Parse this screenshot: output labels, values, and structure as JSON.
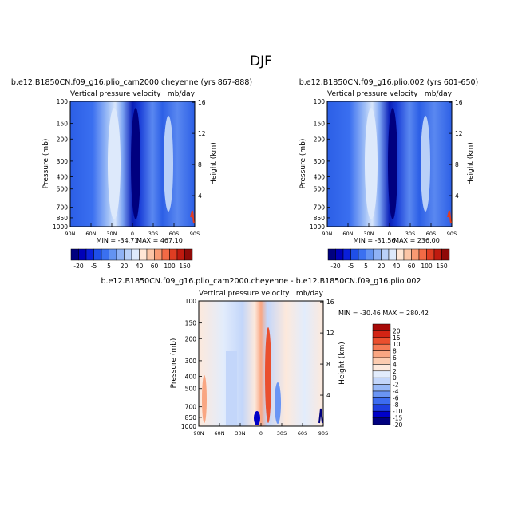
{
  "page": {
    "title": "DJF"
  },
  "colors": {
    "full_scale": [
      "#00007f",
      "#0000b8",
      "#0a1fd9",
      "#1f4fe8",
      "#3a70f0",
      "#6393f2",
      "#8fb2f5",
      "#b9d0f8",
      "#dde9fb",
      "#ffe6d5",
      "#fcc5a6",
      "#f99a72",
      "#f26a45",
      "#e03d22",
      "#c01a0f",
      "#8f0a08"
    ],
    "diff_scale": [
      "#00007f",
      "#0000c8",
      "#1e3fe0",
      "#3c6cf0",
      "#6a95f4",
      "#97b8f7",
      "#c3d6fa",
      "#e2ecfc",
      "#fde9dc",
      "#fcccb0",
      "#f9a682",
      "#f57a55",
      "#ea4f2e",
      "#d22414",
      "#a80a08"
    ]
  },
  "chart_data": [
    {
      "type": "heatmap",
      "title": "b.e12.B1850CN.f09_g16.plio_cam2000.cheyenne (yrs 867-888)",
      "subtitle": "Vertical pressure velocity",
      "units": "mb/day",
      "ylabel": "Pressure (mb)",
      "ylabel_right": "Height (km)",
      "xticks": [
        "90N",
        "60N",
        "30N",
        "0",
        "30S",
        "60S",
        "90S"
      ],
      "yticks": [
        "100",
        "150",
        "200",
        "300",
        "400",
        "500",
        "700",
        "850",
        "1000"
      ],
      "yticks_right": [
        "16",
        "12",
        "8",
        "4"
      ],
      "ylim": [
        1000,
        100
      ],
      "min_label": "MIN = -34.71",
      "max_label": "MAX = 467.10",
      "colorbar_ticks": [
        "-20",
        "-5",
        "5",
        "20",
        "40",
        "60",
        "100",
        "150"
      ],
      "colorbar_position": "bottom"
    },
    {
      "type": "heatmap",
      "title": "b.e12.B1850CN.f09_g16.plio.002 (yrs 601-650)",
      "subtitle": "Vertical pressure velocity",
      "units": "mb/day",
      "ylabel": "Pressure (mb)",
      "ylabel_right": "Height (km)",
      "xticks": [
        "90N",
        "60N",
        "30N",
        "0",
        "30S",
        "60S",
        "90S"
      ],
      "yticks": [
        "100",
        "150",
        "200",
        "300",
        "400",
        "500",
        "700",
        "850",
        "1000"
      ],
      "yticks_right": [
        "16",
        "12",
        "8",
        "4"
      ],
      "ylim": [
        1000,
        100
      ],
      "min_label": "MIN = -31.56",
      "max_label": "MAX = 236.00",
      "colorbar_ticks": [
        "-20",
        "-5",
        "5",
        "20",
        "40",
        "60",
        "100",
        "150"
      ],
      "colorbar_position": "bottom"
    },
    {
      "type": "heatmap",
      "title": "b.e12.B1850CN.f09_g16.plio_cam2000.cheyenne - b.e12.B1850CN.f09_g16.plio.002",
      "subtitle": "Vertical pressure velocity",
      "units": "mb/day",
      "ylabel": "Pressure (mb)",
      "ylabel_right": "Height (km)",
      "xticks": [
        "90N",
        "60N",
        "30N",
        "0",
        "30S",
        "60S",
        "90S"
      ],
      "yticks": [
        "100",
        "150",
        "200",
        "300",
        "400",
        "500",
        "700",
        "850",
        "1000"
      ],
      "yticks_right": [
        "16",
        "12",
        "8",
        "4"
      ],
      "ylim": [
        1000,
        100
      ],
      "minmax_label": "MIN = -30.46   MAX = 280.42",
      "colorbar_ticks": [
        "20",
        "15",
        "10",
        "8",
        "6",
        "4",
        "2",
        "0",
        "-2",
        "-4",
        "-6",
        "-8",
        "-10",
        "-15",
        "-20"
      ],
      "colorbar_position": "right"
    }
  ]
}
